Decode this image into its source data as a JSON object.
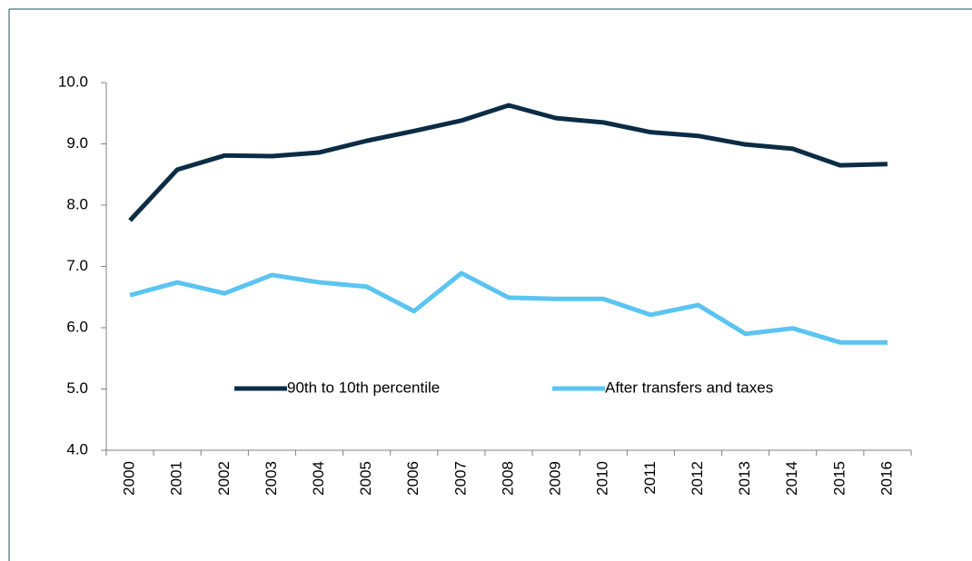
{
  "chart_data": {
    "type": "line",
    "categories": [
      "2000",
      "2001",
      "2002",
      "2003",
      "2004",
      "2005",
      "2006",
      "2007",
      "2008",
      "2009",
      "2010",
      "2011",
      "2012",
      "2013",
      "2014",
      "2015",
      "2016"
    ],
    "series": [
      {
        "name": "90th to 10th percentile",
        "color": "#0b2c45",
        "values": [
          7.75,
          8.58,
          8.81,
          8.8,
          8.86,
          9.05,
          9.21,
          9.38,
          9.63,
          9.42,
          9.35,
          9.19,
          9.13,
          8.99,
          8.92,
          8.65,
          8.67
        ]
      },
      {
        "name": "After transfers and taxes",
        "color": "#5bc4f1",
        "values": [
          6.53,
          6.74,
          6.56,
          6.86,
          6.74,
          6.67,
          6.27,
          6.89,
          6.49,
          6.47,
          6.47,
          6.21,
          6.37,
          5.9,
          5.99,
          5.76,
          5.76
        ]
      }
    ],
    "ylim": [
      4,
      10
    ],
    "yticks": [
      {
        "value": 4,
        "label": "4.0"
      },
      {
        "value": 5,
        "label": "5.0"
      },
      {
        "value": 6,
        "label": "6.0"
      },
      {
        "value": 7,
        "label": "7.0"
      },
      {
        "value": 8,
        "label": "8.0"
      },
      {
        "value": 9,
        "label": "9.0"
      },
      {
        "value": 10,
        "label": "10.0"
      }
    ],
    "legend": "inside-bottom-center"
  }
}
